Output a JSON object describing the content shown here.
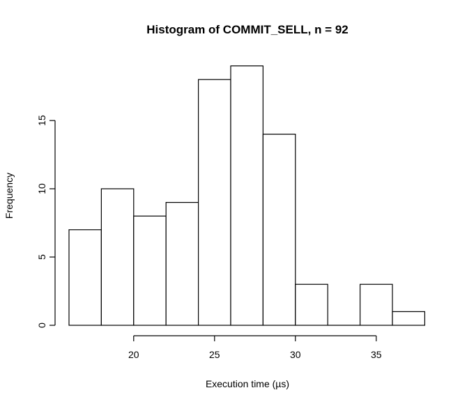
{
  "chart_data": {
    "type": "bar",
    "title": "Histogram of COMMIT_SELL, n = 92",
    "xlabel": "Execution time (µs)",
    "ylabel": "Frequency",
    "bins": [
      {
        "start": 16,
        "end": 18,
        "count": 7
      },
      {
        "start": 18,
        "end": 20,
        "count": 10
      },
      {
        "start": 20,
        "end": 22,
        "count": 8
      },
      {
        "start": 22,
        "end": 24,
        "count": 9
      },
      {
        "start": 24,
        "end": 26,
        "count": 18
      },
      {
        "start": 26,
        "end": 28,
        "count": 19
      },
      {
        "start": 28,
        "end": 30,
        "count": 14
      },
      {
        "start": 30,
        "end": 32,
        "count": 3
      },
      {
        "start": 32,
        "end": 34,
        "count": 0
      },
      {
        "start": 34,
        "end": 36,
        "count": 3
      },
      {
        "start": 36,
        "end": 38,
        "count": 1
      }
    ],
    "x_ticks": [
      20,
      25,
      30,
      35
    ],
    "x_tick_labels": [
      "20",
      "25",
      "30",
      "35"
    ],
    "y_ticks": [
      0,
      5,
      10,
      15
    ],
    "y_tick_labels": [
      "0",
      "5",
      "10",
      "15"
    ],
    "xlim": [
      16,
      38
    ],
    "ylim": [
      0,
      19
    ],
    "grid": false,
    "colors": {
      "bar_fill": "#ffffff",
      "bar_stroke": "#000000",
      "axis": "#000000",
      "text": "#000000"
    }
  }
}
